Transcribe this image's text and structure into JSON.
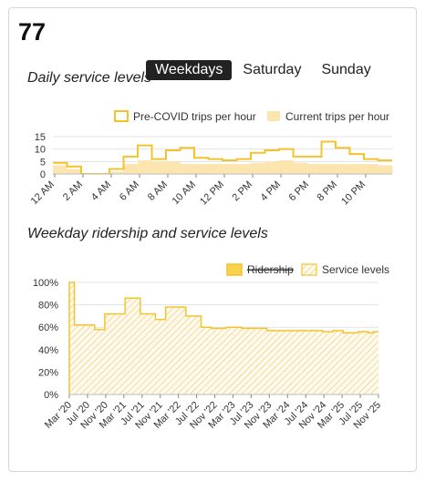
{
  "route": {
    "number": "77"
  },
  "daily": {
    "title": "Daily service levels",
    "tabs": [
      {
        "label": "Weekdays",
        "active": true
      },
      {
        "label": "Saturday",
        "active": false
      },
      {
        "label": "Sunday",
        "active": false
      }
    ]
  },
  "weekday": {
    "title": "Weekday ridership and service levels"
  },
  "colors": {
    "pre": "#f3c32c",
    "current": "#fde5b0",
    "ridership": "#fbd24e",
    "hatch": "#f3d27a",
    "grid": "#e3e3e3",
    "axis": "#444"
  },
  "chart_data": [
    {
      "type": "bar",
      "title": "",
      "x_hours": [
        0,
        1,
        2,
        3,
        4,
        5,
        6,
        7,
        8,
        9,
        10,
        11,
        12,
        13,
        14,
        15,
        16,
        17,
        18,
        19,
        20,
        21,
        22,
        23
      ],
      "x_tick_labels": [
        "12 AM",
        "2 AM",
        "4 AM",
        "6 AM",
        "8 AM",
        "10 AM",
        "12 PM",
        "2 PM",
        "4 PM",
        "6 PM",
        "8 PM",
        "10 PM"
      ],
      "y_ticks": [
        0,
        5,
        10,
        15
      ],
      "ylim": [
        0,
        15
      ],
      "series": [
        {
          "name": "Pre-COVID trips per hour",
          "style": "step-outline",
          "values": [
            4.5,
            3,
            0,
            0,
            2,
            7,
            11.5,
            6,
            9.5,
            10.5,
            6.5,
            6,
            5.5,
            6,
            8.5,
            9.5,
            10,
            7,
            7,
            13,
            10.5,
            8,
            6,
            5.5
          ]
        },
        {
          "name": "Current trips per hour",
          "style": "fill",
          "values": [
            3.5,
            2,
            0,
            0,
            1,
            4,
            5.5,
            5,
            5,
            4,
            4,
            4,
            4,
            4,
            4.5,
            5,
            5.5,
            4.5,
            4,
            4,
            4,
            4,
            4,
            3.5
          ]
        }
      ],
      "legend": "top-right",
      "grid": true
    },
    {
      "type": "area",
      "title": "",
      "x_tick_labels": [
        "Mar '20",
        "Jul '20",
        "Nov '20",
        "Mar '21",
        "Jul '21",
        "Nov '21",
        "Mar '22",
        "Jul '22",
        "Nov '22",
        "Mar '23",
        "Jul '23",
        "Nov '23",
        "Mar '24",
        "Jul '24",
        "Nov '24",
        "Mar '25",
        "Jul '25",
        "Nov '25"
      ],
      "y_tick_labels": [
        "0%",
        "20%",
        "40%",
        "60%",
        "80%",
        "100%"
      ],
      "y_ticks": [
        0,
        20,
        40,
        60,
        80,
        100
      ],
      "ylim": [
        0,
        100
      ],
      "series": [
        {
          "name": "Ridership",
          "strikethrough": true,
          "values": []
        },
        {
          "name": "Service levels",
          "style": "hatched-step",
          "values": [
            100,
            62,
            62,
            62,
            62,
            58,
            58,
            72,
            72,
            72,
            72,
            86,
            86,
            86,
            72,
            72,
            72,
            67,
            67,
            78,
            78,
            78,
            78,
            70,
            70,
            70,
            60,
            60,
            59,
            59,
            59,
            60,
            60,
            60,
            59,
            59,
            59,
            59,
            59,
            57,
            57,
            57,
            57,
            57,
            57,
            57,
            57,
            57,
            57,
            57,
            56,
            56,
            57,
            57,
            55,
            55,
            55,
            56,
            56,
            55,
            56
          ]
        }
      ],
      "legend": "top-right",
      "grid": true
    }
  ]
}
